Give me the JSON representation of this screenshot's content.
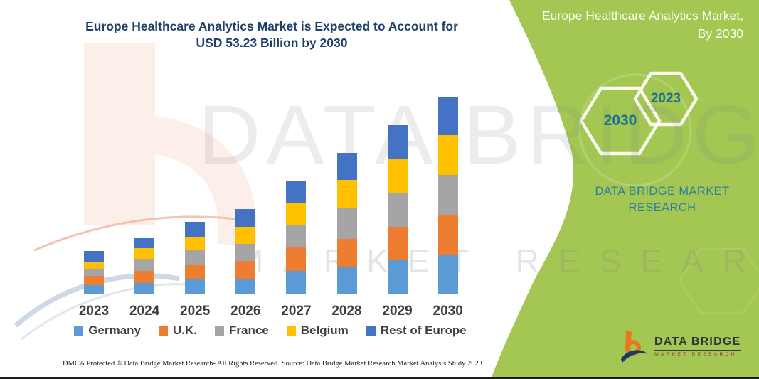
{
  "title": "Europe Healthcare Analytics Market is Expected to Account for USD 53.23 Billion by 2030",
  "watermark": {
    "primary": "DATA BRIDGE",
    "secondary": "MARKET RESEARCH"
  },
  "chart_data": {
    "type": "bar",
    "subtype": "stacked",
    "unit": "USD Billion",
    "categories": [
      "2023",
      "2024",
      "2025",
      "2026",
      "2027",
      "2028",
      "2029",
      "2030"
    ],
    "series": [
      {
        "name": "Germany",
        "color": "#5B9BD5",
        "values": [
          2.3,
          2.9,
          3.9,
          4.0,
          6.2,
          7.4,
          9.0,
          10.6
        ]
      },
      {
        "name": "U.K.",
        "color": "#ED7D31",
        "values": [
          2.6,
          3.2,
          3.9,
          4.9,
          6.6,
          7.5,
          9.2,
          10.8
        ]
      },
      {
        "name": "France",
        "color": "#A5A5A5",
        "values": [
          1.9,
          3.4,
          4.0,
          4.6,
          5.8,
          8.4,
          9.1,
          10.9
        ]
      },
      {
        "name": "Belgium",
        "color": "#FFC000",
        "values": [
          1.9,
          2.9,
          3.7,
          4.6,
          5.9,
          7.6,
          9.2,
          10.7
        ]
      },
      {
        "name": "Rest of Europe",
        "color": "#4472C4",
        "values": [
          2.8,
          2.7,
          3.9,
          4.9,
          6.2,
          7.2,
          9.3,
          10.3
        ]
      }
    ],
    "totals": [
      11.5,
      15.1,
      19.4,
      23.0,
      30.7,
      38.1,
      45.8,
      53.23
    ],
    "title": "Europe Healthcare Analytics Market is Expected to Account for USD 53.23 Billion by 2030",
    "xlabel": "",
    "ylabel": "",
    "legend_position": "bottom",
    "grid": false
  },
  "panel": {
    "title_line1": "Europe Healthcare Analytics Market,",
    "title_line2": "By 2030",
    "hexagons": [
      {
        "label": "2030"
      },
      {
        "label": "2023"
      }
    ],
    "brand_text": "DATA BRIDGE MARKET RESEARCH",
    "green": "#A3C752",
    "teal": "#2B7E9E"
  },
  "logo": {
    "name": "DATA BRIDGE",
    "subtitle": "MARKET RESEARCH"
  },
  "footer": {
    "left": "DMCA Protected ® Data Bridge Market Research-  All Rights Reserved.",
    "right": "Source: Data Bridge Market Research  Market Analysis Study 2023"
  }
}
